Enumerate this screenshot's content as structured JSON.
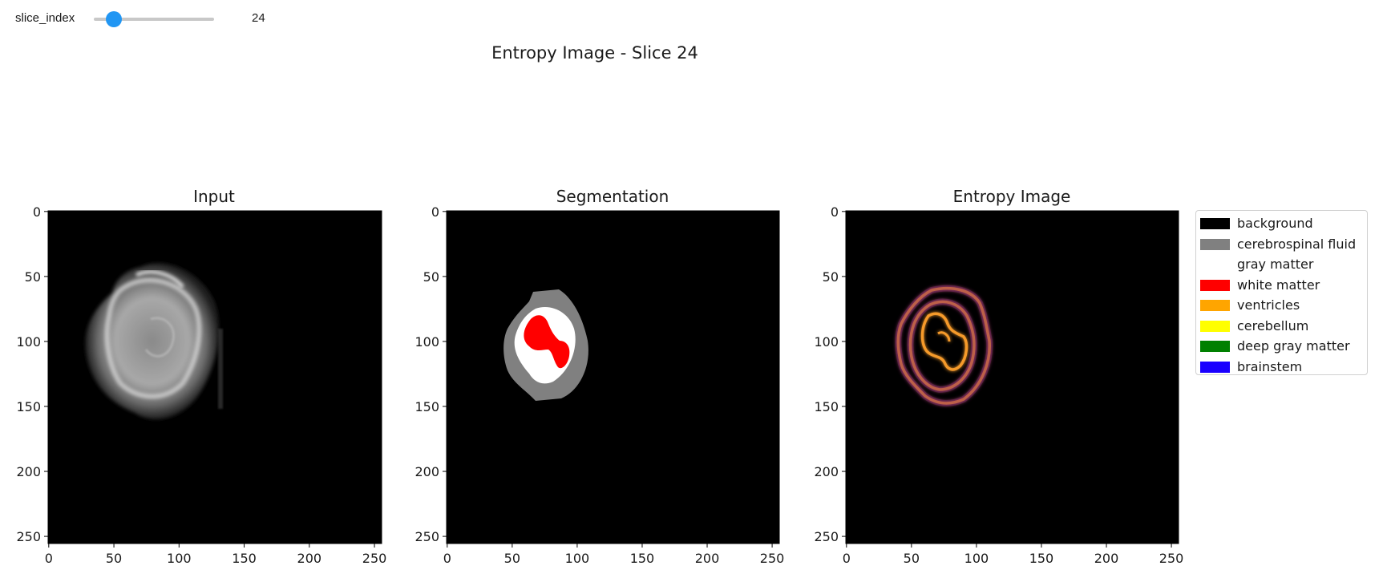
{
  "widget": {
    "label": "slice_index",
    "value": 24,
    "value_text": "24",
    "min": 0,
    "max": 255,
    "accent_color": "#2196f3"
  },
  "figure": {
    "suptitle": "Entropy Image - Slice 24"
  },
  "panels": [
    {
      "title": "Input",
      "image": "grayscale brain MRI slice"
    },
    {
      "title": "Segmentation",
      "image": "label map"
    },
    {
      "title": "Entropy Image",
      "image": "inferno-colormap entropy contours"
    }
  ],
  "axes": {
    "x_ticks": [
      "0",
      "50",
      "100",
      "150",
      "200",
      "250"
    ],
    "y_ticks": [
      "0",
      "50",
      "100",
      "150",
      "200",
      "250"
    ],
    "range": [
      0,
      255
    ]
  },
  "legend": {
    "items": [
      {
        "label": "background",
        "color": "#000000"
      },
      {
        "label": "cerebrospinal fluid",
        "color": "#808080"
      },
      {
        "label": "gray matter",
        "color": "#ffffff"
      },
      {
        "label": "white matter",
        "color": "#ff0000"
      },
      {
        "label": "ventricles",
        "color": "#ffa500"
      },
      {
        "label": "cerebellum",
        "color": "#ffff00"
      },
      {
        "label": "deep gray matter",
        "color": "#008000"
      },
      {
        "label": "brainstem",
        "color": "#1a00ff"
      }
    ]
  }
}
